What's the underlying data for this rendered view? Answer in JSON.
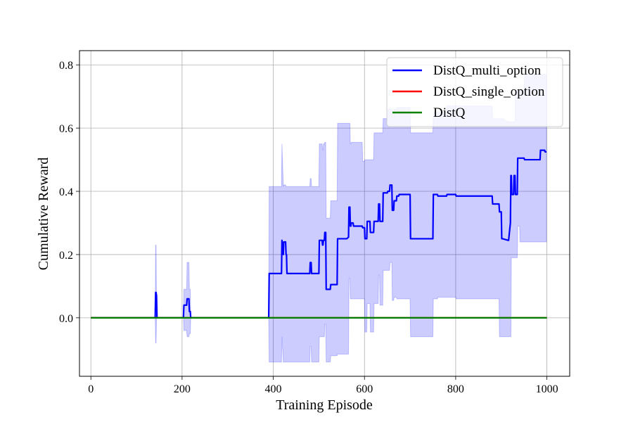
{
  "chart_data": {
    "type": "line",
    "title": "",
    "xlabel": "Training Episode",
    "ylabel": "Cumulative Reward",
    "xlim": [
      -25,
      1050
    ],
    "ylim": [
      -0.185,
      0.845
    ],
    "xticks": [
      0,
      200,
      400,
      600,
      800,
      1000
    ],
    "yticks": [
      0.0,
      0.2,
      0.4,
      0.6,
      0.8
    ],
    "xtick_labels": [
      "0",
      "200",
      "400",
      "600",
      "800",
      "1000"
    ],
    "ytick_labels": [
      "0.0",
      "0.2",
      "0.4",
      "0.6",
      "0.8"
    ],
    "grid": true,
    "legend_position": "top-right",
    "series": [
      {
        "name": "DistQ_multi_option",
        "color": "#0000ff",
        "band_color": "#0000ff",
        "x": [
          0,
          140,
          141,
          142,
          143,
          144,
          145,
          146,
          147,
          200,
          203,
          204,
          210,
          211,
          215,
          216,
          218,
          219,
          220,
          221,
          222,
          223,
          390,
          391,
          392,
          418,
          419,
          422,
          423,
          426,
          427,
          428,
          429,
          430,
          431,
          480,
          481,
          483,
          484,
          485,
          486,
          500,
          501,
          503,
          504,
          507,
          508,
          509,
          510,
          512,
          513,
          515,
          516,
          525,
          526,
          540,
          541,
          560,
          561,
          565,
          566,
          568,
          569,
          570,
          571,
          575,
          576,
          595,
          596,
          600,
          601,
          605,
          606,
          612,
          613,
          620,
          621,
          630,
          631,
          633,
          634,
          640,
          641,
          650,
          651,
          655,
          656,
          660,
          661,
          664,
          665,
          670,
          671,
          675,
          676,
          680,
          681,
          700,
          701,
          750,
          751,
          760,
          761,
          780,
          781,
          800,
          801,
          820,
          821,
          880,
          881,
          895,
          896,
          900,
          901,
          902,
          903,
          915,
          916,
          920,
          921,
          922,
          923,
          927,
          928,
          930,
          931,
          935,
          936,
          940,
          941,
          945,
          946,
          950,
          951,
          985,
          986,
          995,
          996,
          999
        ],
        "values": [
          0.0,
          0.0,
          0.0,
          0.08,
          0.08,
          0.07,
          0.0,
          0.0,
          0.0,
          0.0,
          0.0,
          0.04,
          0.04,
          0.06,
          0.06,
          0.02,
          0.02,
          0.0,
          0.0,
          0.0,
          0.0,
          0.0,
          0.0,
          0.14,
          0.14,
          0.14,
          0.245,
          0.2,
          0.24,
          0.24,
          0.24,
          0.2,
          0.2,
          0.14,
          0.14,
          0.14,
          0.175,
          0.175,
          0.14,
          0.14,
          0.14,
          0.14,
          0.245,
          0.245,
          0.245,
          0.245,
          0.23,
          0.23,
          0.245,
          0.245,
          0.27,
          0.27,
          0.09,
          0.09,
          0.105,
          0.105,
          0.25,
          0.25,
          0.25,
          0.255,
          0.35,
          0.35,
          0.29,
          0.29,
          0.3,
          0.3,
          0.29,
          0.29,
          0.285,
          0.285,
          0.25,
          0.25,
          0.305,
          0.305,
          0.27,
          0.27,
          0.305,
          0.305,
          0.36,
          0.36,
          0.305,
          0.305,
          0.395,
          0.395,
          0.4,
          0.4,
          0.42,
          0.42,
          0.34,
          0.34,
          0.37,
          0.37,
          0.385,
          0.385,
          0.39,
          0.39,
          0.39,
          0.39,
          0.25,
          0.25,
          0.39,
          0.39,
          0.385,
          0.385,
          0.39,
          0.39,
          0.385,
          0.385,
          0.385,
          0.385,
          0.36,
          0.36,
          0.335,
          0.335,
          0.25,
          0.25,
          0.25,
          0.245,
          0.245,
          0.3,
          0.45,
          0.45,
          0.39,
          0.39,
          0.45,
          0.45,
          0.39,
          0.39,
          0.505,
          0.505,
          0.505,
          0.505,
          0.505,
          0.505,
          0.5,
          0.5,
          0.53,
          0.53,
          0.525,
          0.525
        ],
        "band_upper": [
          0.0,
          0.0,
          0.0,
          0.23,
          0.23,
          0.0,
          0.0,
          0.0,
          0.0,
          0.0,
          0.0,
          0.09,
          0.09,
          0.175,
          0.175,
          0.09,
          0.09,
          0.0,
          0.0,
          0.0,
          0.0,
          0.0,
          0.0,
          0.415,
          0.415,
          0.415,
          0.55,
          0.415,
          0.42,
          0.42,
          0.42,
          0.415,
          0.415,
          0.415,
          0.415,
          0.415,
          0.44,
          0.44,
          0.415,
          0.415,
          0.415,
          0.415,
          0.55,
          0.55,
          0.55,
          0.55,
          0.53,
          0.53,
          0.55,
          0.55,
          0.555,
          0.555,
          0.315,
          0.315,
          0.37,
          0.37,
          0.615,
          0.615,
          0.615,
          0.615,
          0.615,
          0.615,
          0.55,
          0.55,
          0.555,
          0.555,
          0.555,
          0.555,
          0.495,
          0.495,
          0.5,
          0.5,
          0.5,
          0.5,
          0.5,
          0.5,
          0.585,
          0.585,
          0.585,
          0.585,
          0.585,
          0.585,
          0.63,
          0.63,
          0.66,
          0.66,
          0.66,
          0.66,
          0.63,
          0.63,
          0.66,
          0.66,
          0.665,
          0.665,
          0.665,
          0.665,
          0.665,
          0.665,
          0.585,
          0.585,
          0.65,
          0.65,
          0.65,
          0.65,
          0.67,
          0.67,
          0.67,
          0.67,
          0.67,
          0.67,
          0.63,
          0.63,
          0.63,
          0.63,
          0.63,
          0.63,
          0.63,
          0.62,
          0.62,
          0.62,
          0.62,
          0.62,
          0.62,
          0.62,
          0.62,
          0.62,
          0.72,
          0.72,
          0.72,
          0.72,
          0.72,
          0.72,
          0.72,
          0.72,
          0.77,
          0.77,
          0.77,
          0.77,
          0.77,
          0.77
        ],
        "band_lower": [
          0.0,
          0.0,
          0.0,
          -0.08,
          -0.08,
          0.0,
          0.0,
          0.0,
          0.0,
          0.0,
          0.0,
          -0.04,
          -0.04,
          -0.06,
          -0.06,
          -0.05,
          -0.05,
          0.0,
          0.0,
          0.0,
          0.0,
          0.0,
          0.0,
          -0.14,
          -0.14,
          -0.14,
          -0.06,
          -0.14,
          -0.14,
          -0.14,
          -0.14,
          -0.14,
          -0.14,
          -0.14,
          -0.14,
          -0.14,
          -0.09,
          -0.09,
          -0.14,
          -0.14,
          -0.14,
          -0.14,
          -0.06,
          -0.06,
          -0.06,
          -0.06,
          -0.06,
          -0.06,
          -0.06,
          -0.06,
          -0.02,
          -0.02,
          -0.14,
          -0.14,
          -0.12,
          -0.12,
          -0.115,
          -0.115,
          -0.115,
          -0.115,
          0.125,
          0.125,
          0.06,
          0.06,
          0.06,
          0.06,
          0.06,
          0.06,
          0.06,
          0.06,
          -0.045,
          -0.045,
          0.045,
          0.045,
          -0.045,
          -0.045,
          0.045,
          0.045,
          0.135,
          0.135,
          0.04,
          0.04,
          0.15,
          0.15,
          0.15,
          0.15,
          0.175,
          0.175,
          0.055,
          0.055,
          0.065,
          0.065,
          0.06,
          0.06,
          0.06,
          0.06,
          0.06,
          0.06,
          -0.06,
          -0.06,
          0.06,
          0.06,
          0.065,
          0.065,
          0.065,
          0.065,
          0.06,
          0.06,
          0.06,
          0.06,
          0.06,
          0.06,
          -0.06,
          -0.06,
          -0.06,
          -0.06,
          -0.06,
          -0.06,
          -0.06,
          -0.06,
          -0.06,
          0.19,
          0.19,
          0.19,
          0.19,
          0.19,
          0.19,
          0.19,
          0.29,
          0.29,
          0.24,
          0.24,
          0.24,
          0.24,
          0.24,
          0.24,
          0.24,
          0.24,
          0.24,
          0.24,
          0.24,
          0.24,
          0.24,
          0.24
        ]
      },
      {
        "name": "DistQ_single_option",
        "color": "#ff0000",
        "x": [
          0,
          1000
        ],
        "values": [
          0.0,
          0.0
        ]
      },
      {
        "name": "DistQ",
        "color": "#008000",
        "x": [
          0,
          1000
        ],
        "values": [
          0.0,
          0.0
        ]
      }
    ]
  }
}
